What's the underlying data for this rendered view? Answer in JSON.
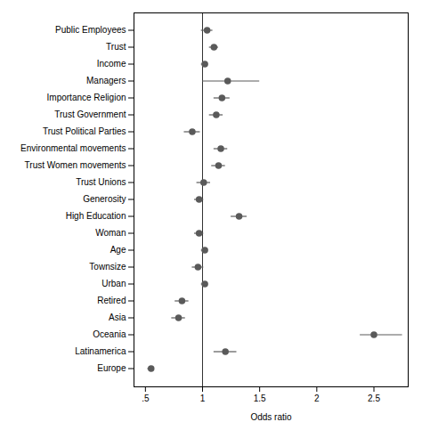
{
  "chart_data": {
    "type": "forest",
    "xlabel": "Odds ratio",
    "categories": [
      "Public Employees",
      "Trust",
      "Income",
      "Managers",
      "Importance Religion",
      "Trust Government",
      "Trust Political Parties",
      "Environmental movements",
      "Trust Women movements",
      "Trust Unions",
      "Generosity",
      "High Education",
      "Woman",
      "Age",
      "Townsize",
      "Urban",
      "Retired",
      "Asia",
      "Oceania",
      "Latinamerica",
      "Europe"
    ],
    "values": [
      1.04,
      1.1,
      1.02,
      1.22,
      1.17,
      1.12,
      0.91,
      1.16,
      1.14,
      1.01,
      0.97,
      1.32,
      0.97,
      1.02,
      0.96,
      1.02,
      0.82,
      0.79,
      2.5,
      1.2,
      0.55
    ],
    "ci_lo": [
      0.99,
      1.06,
      0.99,
      1.0,
      1.1,
      1.06,
      0.84,
      1.1,
      1.08,
      0.95,
      0.93,
      1.25,
      0.93,
      0.99,
      0.91,
      0.99,
      0.76,
      0.73,
      2.38,
      1.1,
      0.52
    ],
    "ci_hi": [
      1.09,
      1.14,
      1.05,
      1.5,
      1.24,
      1.18,
      0.98,
      1.22,
      1.2,
      1.07,
      1.01,
      1.39,
      1.01,
      1.05,
      1.01,
      1.05,
      0.88,
      0.85,
      2.75,
      1.3,
      0.58
    ],
    "reference_line": 1.0,
    "xlim": [
      0.4,
      2.8
    ],
    "xticks": [
      {
        "value": 0.5,
        "label": ".5"
      },
      1,
      1.5,
      2,
      2.5
    ],
    "color": "#5a5a5a",
    "grid": false
  }
}
